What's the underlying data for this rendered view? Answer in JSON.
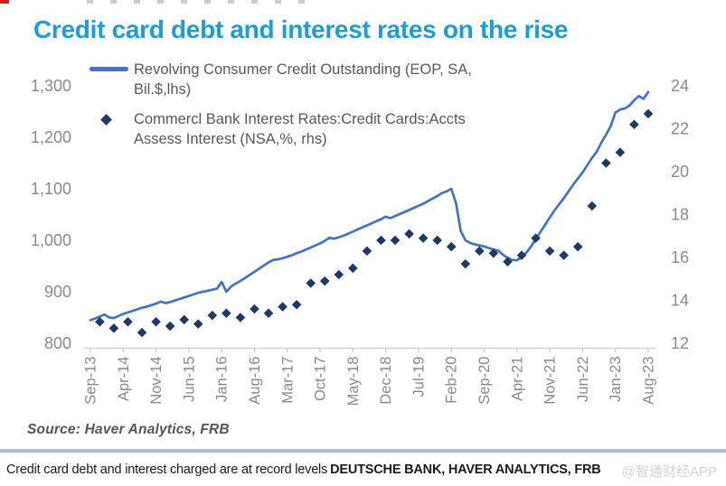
{
  "page": {
    "title": "Credit card debt and interest rates on the rise",
    "source_note": "Source: Haver Analytics, FRB",
    "caption_text": "Credit card debt and interest charged are at record levels",
    "caption_attribution": "DEUTSCHE BANK, HAVER ANALYTICS, FRB",
    "watermark": "@智通财经APP"
  },
  "colors": {
    "title": "#1E9CD8",
    "line_series": "#4472C4",
    "diamond_series": "#1F3864",
    "axis_text": "#8A8A8A",
    "axis_line": "#D2D2D2",
    "divider": "#A3BED6"
  },
  "legend": {
    "items": [
      {
        "marker": "line",
        "color": "#4472C4",
        "lines": [
          "Revolving Consumer Credit Outstanding (EOP, SA,",
          "Bil.$,lhs)"
        ]
      },
      {
        "marker": "diamond",
        "color": "#1F3864",
        "lines": [
          "Commercl Bank Interest Rates:Credit Cards:Accts",
          "Assess Interest (NSA,%, rhs)"
        ]
      }
    ]
  },
  "chart_data": {
    "type": "line",
    "title": "Credit card debt and interest rates on the rise",
    "grid": false,
    "legend_position": "top-left",
    "x_tick_labels": [
      "Sep-13",
      "Apr-14",
      "Nov-14",
      "Jun-15",
      "Jan-16",
      "Aug-16",
      "Mar-17",
      "Oct-17",
      "May-18",
      "Dec-18",
      "Jul-19",
      "Feb-20",
      "Sep-20",
      "Apr-21",
      "Nov-21",
      "Jun-22",
      "Jan-23",
      "Aug-23"
    ],
    "x_tick_interval_months": 7,
    "left_axis": {
      "tick_labels": [
        "1,300",
        "1,200",
        "1,100",
        "1,000",
        "900",
        "800"
      ],
      "tick_values": [
        1300,
        1200,
        1100,
        1000,
        900,
        800
      ],
      "range": [
        800,
        1300
      ],
      "units": "Bil.$"
    },
    "right_axis": {
      "tick_labels": [
        "24",
        "22",
        "20",
        "18",
        "16",
        "14",
        "12"
      ],
      "tick_values": [
        24,
        22,
        20,
        18,
        16,
        14,
        12
      ],
      "range": [
        12,
        24
      ],
      "units": "%"
    },
    "series": [
      {
        "name": "Revolving Consumer Credit Outstanding (EOP, SA, Bil.$,lhs)",
        "axis": "left",
        "style": "line",
        "color": "#4472C4",
        "x_start": "Sep-13",
        "x_interval": "monthly",
        "values": [
          845,
          848,
          852,
          856,
          850,
          849,
          853,
          857,
          860,
          863,
          866,
          869,
          871,
          874,
          877,
          881,
          878,
          880,
          883,
          886,
          889,
          892,
          895,
          898,
          900,
          902,
          904,
          906,
          919,
          900,
          910,
          916,
          921,
          927,
          933,
          939,
          945,
          951,
          957,
          962,
          963,
          965,
          968,
          971,
          975,
          978,
          982,
          986,
          990,
          994,
          999,
          1005,
          1003,
          1006,
          1009,
          1013,
          1017,
          1021,
          1025,
          1029,
          1033,
          1037,
          1041,
          1046,
          1043,
          1047,
          1051,
          1055,
          1059,
          1063,
          1067,
          1071,
          1076,
          1081,
          1086,
          1092,
          1095,
          1100,
          1072,
          1018,
          1000,
          995,
          992,
          990,
          988,
          985,
          982,
          980,
          972,
          966,
          962,
          961,
          968,
          976,
          988,
          1002,
          1016,
          1030,
          1044,
          1058,
          1070,
          1082,
          1095,
          1108,
          1120,
          1132,
          1146,
          1160,
          1172,
          1190,
          1205,
          1222,
          1248,
          1254,
          1256,
          1262,
          1272,
          1280,
          1275,
          1288
        ]
      },
      {
        "name": "Commercl Bank Interest Rates:Credit Cards:Accts Assess Interest (NSA,%, rhs)",
        "axis": "right",
        "style": "scatter-diamond",
        "color": "#1F3864",
        "x_start": "Nov-13",
        "x_interval": "quarterly",
        "x_start_month_index": 2,
        "x_step_months": 3,
        "values": [
          13.0,
          12.7,
          13.0,
          12.5,
          13.0,
          12.8,
          13.1,
          12.9,
          13.3,
          13.4,
          13.2,
          13.6,
          13.4,
          13.7,
          13.8,
          14.8,
          14.9,
          15.2,
          15.5,
          16.3,
          16.8,
          16.8,
          17.1,
          16.9,
          16.8,
          16.5,
          15.7,
          16.3,
          16.2,
          15.8,
          16.1,
          16.9,
          16.3,
          16.1,
          16.5,
          18.4,
          20.4,
          20.9,
          22.2,
          22.7
        ]
      }
    ]
  }
}
